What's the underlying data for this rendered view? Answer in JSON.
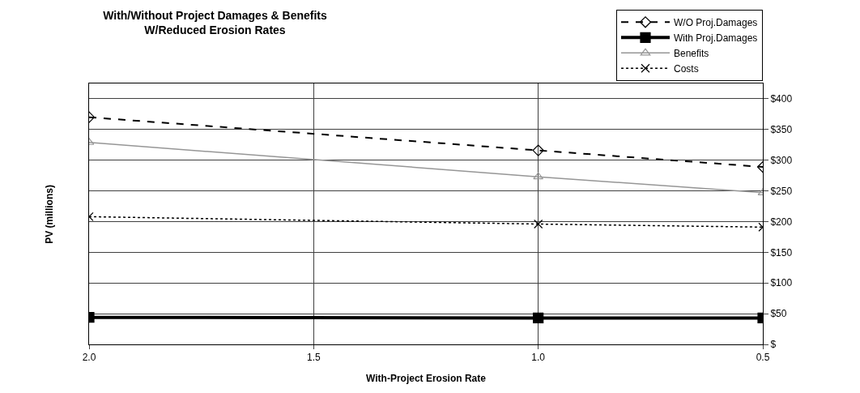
{
  "chart_data": {
    "type": "line",
    "title": "With/Without Project Damages & Benefits\nW/Reduced Erosion Rates",
    "xlabel": "With-Project Erosion Rate",
    "ylabel": "PV (millions)",
    "x": [
      2.0,
      1.0,
      0.5
    ],
    "series": [
      {
        "name": "W/O Proj.Damages",
        "color": "#000000",
        "values": [
          370,
          316,
          289
        ],
        "marker": "diamond",
        "line_style": "dashed"
      },
      {
        "name": "With Proj.Damages",
        "color": "#000000",
        "values": [
          44,
          43,
          43
        ],
        "marker": "square",
        "line_style": "solid"
      },
      {
        "name": "Benefits",
        "color": "#969696",
        "values": [
          329,
          273,
          247
        ],
        "marker": "triangle",
        "line_style": "solid"
      },
      {
        "name": "Costs",
        "color": "#000000",
        "values": [
          208,
          196,
          191
        ],
        "marker": "cross",
        "line_style": "dotted"
      }
    ],
    "xlim": [
      2.0,
      0.5
    ],
    "xticks": [
      {
        "value": 2.0,
        "label": "2.0"
      },
      {
        "value": 1.5,
        "label": "1.5"
      },
      {
        "value": 1.0,
        "label": "1.0"
      },
      {
        "value": 0.5,
        "label": "0.5"
      }
    ],
    "ylim": [
      0,
      425
    ],
    "yticks": [
      {
        "value": 0,
        "label": "$"
      },
      {
        "value": 50,
        "label": "$50"
      },
      {
        "value": 100,
        "label": "$100"
      },
      {
        "value": 150,
        "label": "$150"
      },
      {
        "value": 200,
        "label": "$200"
      },
      {
        "value": 250,
        "label": "$250"
      },
      {
        "value": 300,
        "label": "$300"
      },
      {
        "value": 350,
        "label": "$350"
      },
      {
        "value": 400,
        "label": "$400"
      }
    ],
    "grid": true,
    "legend": "top right"
  }
}
